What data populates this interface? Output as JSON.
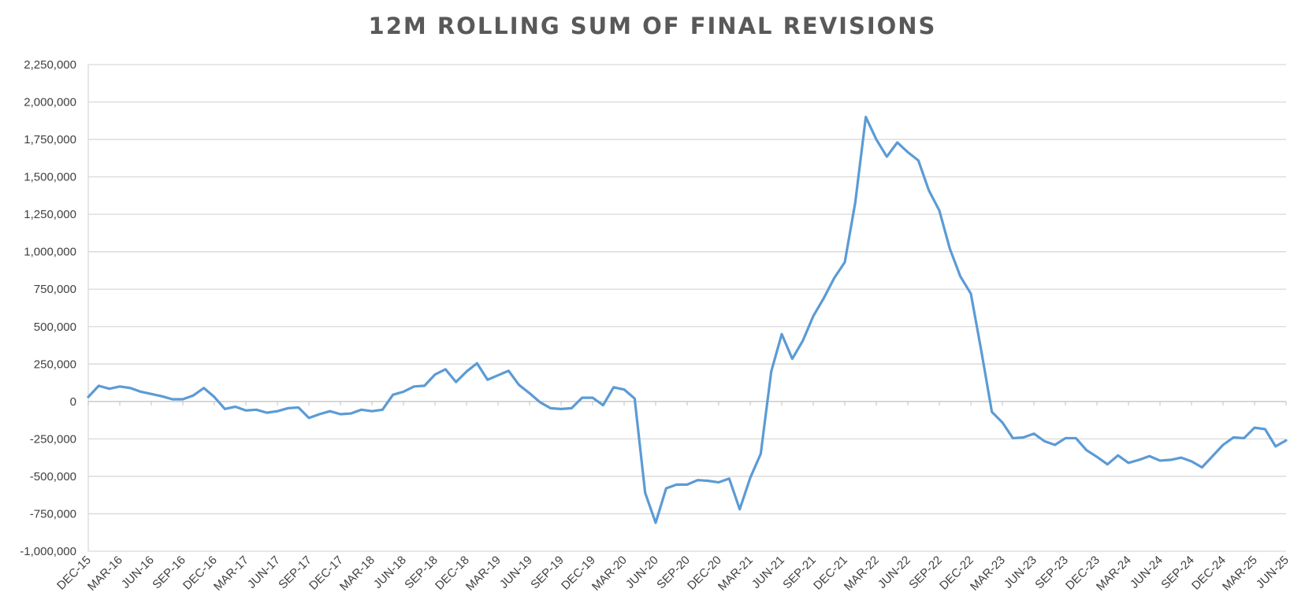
{
  "chart_data": {
    "type": "line",
    "title": "12M ROLLING SUM OF FINAL REVISIONS",
    "xlabel": "",
    "ylabel": "",
    "ylim": [
      -1000000,
      2250000
    ],
    "y_ticks": [
      2250000,
      2000000,
      1750000,
      1500000,
      1250000,
      1000000,
      750000,
      500000,
      250000,
      0,
      -250000,
      -500000,
      -750000,
      -1000000
    ],
    "y_tick_labels": [
      "2,250,000",
      "2,000,000",
      "1,750,000",
      "1,500,000",
      "1,250,000",
      "1,000,000",
      "750,000",
      "500,000",
      "250,000",
      "0",
      "-250,000",
      "-500,000",
      "-750,000",
      "-1,000,000"
    ],
    "x_tick_labels": [
      "DEC-15",
      "MAR-16",
      "JUN-16",
      "SEP-16",
      "DEC-16",
      "MAR-17",
      "JUN-17",
      "SEP-17",
      "DEC-17",
      "MAR-18",
      "JUN-18",
      "SEP-18",
      "DEC-18",
      "MAR-19",
      "JUN-19",
      "SEP-19",
      "DEC-19",
      "MAR-20",
      "JUN-20",
      "SEP-20",
      "DEC-20",
      "MAR-21",
      "JUN-21",
      "SEP-21",
      "DEC-21",
      "MAR-22",
      "JUN-22",
      "SEP-22",
      "DEC-22",
      "MAR-23",
      "JUN-23",
      "SEP-23",
      "DEC-23",
      "MAR-24",
      "JUN-24",
      "SEP-24",
      "DEC-24",
      "MAR-25",
      "JUN-25"
    ],
    "grid": true,
    "line_color": "#5B9BD5",
    "series": [
      {
        "x": [
          "DEC-15",
          "JAN-16",
          "FEB-16",
          "MAR-16",
          "APR-16",
          "MAY-16",
          "JUN-16",
          "JUL-16",
          "AUG-16",
          "SEP-16",
          "OCT-16",
          "NOV-16",
          "DEC-16",
          "JAN-17",
          "FEB-17",
          "MAR-17",
          "APR-17",
          "MAY-17",
          "JUN-17",
          "JUL-17",
          "AUG-17",
          "SEP-17",
          "OCT-17",
          "NOV-17",
          "DEC-17",
          "JAN-18",
          "FEB-18",
          "MAR-18",
          "APR-18",
          "MAY-18",
          "JUN-18",
          "JUL-18",
          "AUG-18",
          "SEP-18",
          "OCT-18",
          "NOV-18",
          "DEC-18",
          "JAN-19",
          "FEB-19",
          "MAR-19",
          "APR-19",
          "MAY-19",
          "JUN-19",
          "JUL-19",
          "AUG-19",
          "SEP-19",
          "OCT-19",
          "NOV-19",
          "DEC-19",
          "JAN-20",
          "FEB-20",
          "MAR-20",
          "APR-20",
          "MAY-20",
          "JUN-20",
          "JUL-20",
          "AUG-20",
          "SEP-20",
          "OCT-20",
          "NOV-20",
          "DEC-20",
          "JAN-21",
          "FEB-21",
          "MAR-21",
          "APR-21",
          "MAY-21",
          "JUN-21",
          "JUL-21",
          "AUG-21",
          "SEP-21",
          "OCT-21",
          "NOV-21",
          "DEC-21",
          "JAN-22",
          "FEB-22",
          "MAR-22",
          "APR-22",
          "MAY-22",
          "JUN-22",
          "JUL-22",
          "AUG-22",
          "SEP-22",
          "OCT-22",
          "NOV-22",
          "DEC-22",
          "JAN-23",
          "FEB-23",
          "MAR-23",
          "APR-23",
          "MAY-23",
          "JUN-23",
          "JUL-23",
          "AUG-23",
          "SEP-23",
          "OCT-23",
          "NOV-23",
          "DEC-23",
          "JAN-24",
          "FEB-24",
          "MAR-24",
          "APR-24",
          "MAY-24",
          "JUN-24",
          "JUL-24",
          "AUG-24",
          "SEP-24",
          "OCT-24",
          "NOV-24",
          "DEC-24",
          "JAN-25",
          "FEB-25",
          "MAR-25",
          "APR-25",
          "MAY-25",
          "JUN-25"
        ],
        "values": [
          30000,
          105000,
          85000,
          100000,
          90000,
          65000,
          50000,
          35000,
          15000,
          15000,
          40000,
          90000,
          30000,
          -50000,
          -35000,
          -60000,
          -55000,
          -75000,
          -65000,
          -45000,
          -40000,
          -110000,
          -85000,
          -65000,
          -85000,
          -80000,
          -55000,
          -65000,
          -55000,
          45000,
          65000,
          100000,
          105000,
          180000,
          215000,
          130000,
          200000,
          255000,
          145000,
          175000,
          205000,
          110000,
          55000,
          -5000,
          -45000,
          -50000,
          -45000,
          25000,
          25000,
          -25000,
          95000,
          80000,
          20000,
          -610000,
          -810000,
          -580000,
          -555000,
          -555000,
          -525000,
          -530000,
          -540000,
          -515000,
          -720000,
          -510000,
          -350000,
          200000,
          450000,
          285000,
          405000,
          570000,
          690000,
          825000,
          930000,
          1330000,
          1900000,
          1750000,
          1635000,
          1730000,
          1665000,
          1610000,
          1410000,
          1275000,
          1020000,
          835000,
          720000,
          335000,
          -70000,
          -140000,
          -245000,
          -240000,
          -215000,
          -265000,
          -290000,
          -245000,
          -245000,
          -325000,
          -370000,
          -420000,
          -360000,
          -410000,
          -390000,
          -365000,
          -395000,
          -390000,
          -375000,
          -400000,
          -440000,
          -365000,
          -290000,
          -240000,
          -245000,
          -175000,
          -185000,
          -300000,
          -260000
        ]
      }
    ]
  }
}
